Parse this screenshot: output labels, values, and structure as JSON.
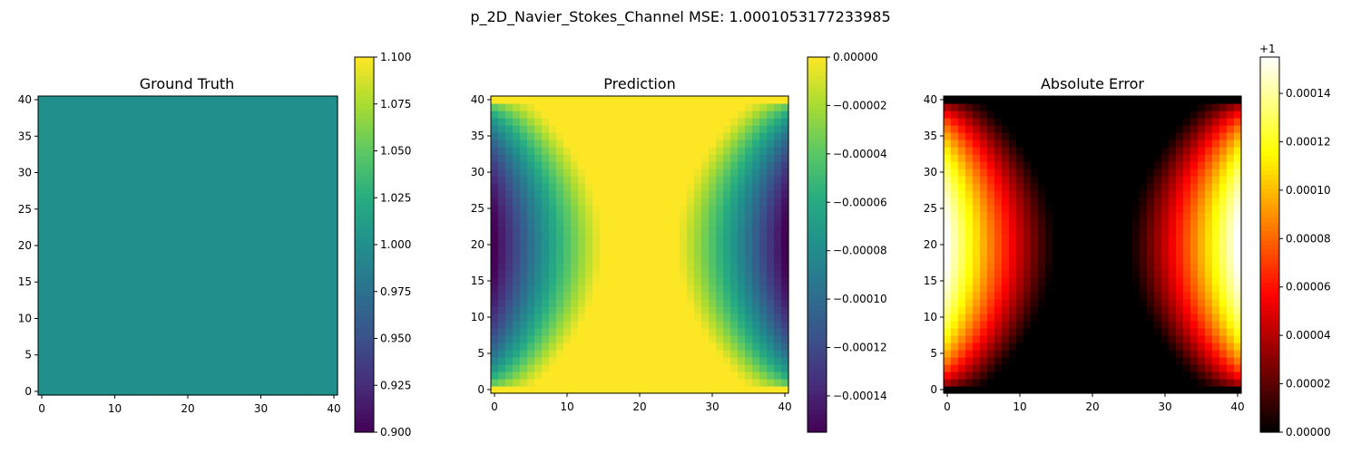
{
  "figure": {
    "suptitle": "p_2D_Navier_Stokes_Channel MSE: 1.0001053177233985"
  },
  "chart_data": [
    {
      "type": "heatmap",
      "title": "Ground Truth",
      "colormap": "viridis",
      "field": "uniform",
      "uniform_value": 1.0,
      "grid_size": [
        41,
        41
      ],
      "xlim": [
        -0.5,
        40.5
      ],
      "ylim": [
        -0.5,
        40.5
      ],
      "xticks": [
        "0",
        "10",
        "20",
        "30",
        "40"
      ],
      "yticks": [
        "0",
        "5",
        "10",
        "15",
        "20",
        "25",
        "30",
        "35",
        "40"
      ],
      "colorbar": {
        "range": [
          0.9,
          1.1
        ],
        "ticks": [
          "0.900",
          "0.925",
          "0.950",
          "0.975",
          "1.000",
          "1.025",
          "1.050",
          "1.075",
          "1.100"
        ],
        "offset": ""
      }
    },
    {
      "type": "heatmap",
      "title": "Prediction",
      "colormap": "viridis",
      "field": "channel",
      "grid_size": [
        41,
        41
      ],
      "value_at_walls": 0.0,
      "value_min": -0.000155,
      "xlim": [
        -0.5,
        40.5
      ],
      "ylim": [
        -0.5,
        40.5
      ],
      "xticks": [
        "0",
        "10",
        "20",
        "30",
        "40"
      ],
      "yticks": [
        "0",
        "5",
        "10",
        "15",
        "20",
        "25",
        "30",
        "35",
        "40"
      ],
      "colorbar": {
        "range": [
          -0.000155,
          0.0
        ],
        "ticks": [
          "−0.00014",
          "−0.00012",
          "−0.00010",
          "−0.00008",
          "−0.00006",
          "−0.00004",
          "−0.00002",
          "0.00000"
        ],
        "offset": ""
      }
    },
    {
      "type": "heatmap",
      "title": "Absolute Error",
      "colormap": "hot",
      "field": "channel_error",
      "grid_size": [
        41,
        41
      ],
      "offset_value": 1,
      "value_max_above_offset": 0.000155,
      "xlim": [
        -0.5,
        40.5
      ],
      "ylim": [
        -0.5,
        40.5
      ],
      "xticks": [
        "0",
        "10",
        "20",
        "30",
        "40"
      ],
      "yticks": [
        "0",
        "5",
        "10",
        "15",
        "20",
        "25",
        "30",
        "35",
        "40"
      ],
      "colorbar": {
        "range": [
          0.0,
          0.000155
        ],
        "ticks": [
          "0.00000",
          "0.00002",
          "0.00004",
          "0.00006",
          "0.00008",
          "0.00010",
          "0.00012",
          "0.00014"
        ],
        "offset": "+1"
      }
    }
  ]
}
